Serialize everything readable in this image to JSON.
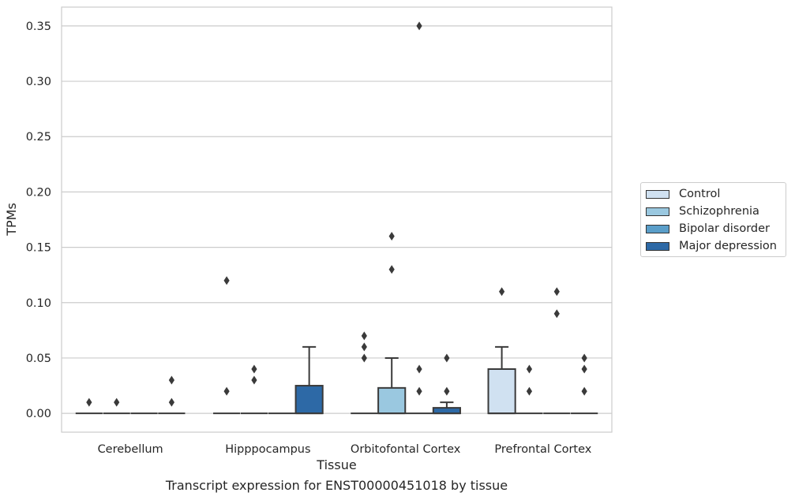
{
  "chart_data": {
    "type": "box",
    "xlabel": "Tissue",
    "ylabel": "TPMs",
    "ylim": [
      -0.017,
      0.367
    ],
    "yticks": [
      0.0,
      0.05,
      0.1,
      0.15,
      0.2,
      0.25,
      0.3,
      0.35
    ],
    "ytick_labels": [
      "0.00",
      "0.05",
      "0.10",
      "0.15",
      "0.20",
      "0.25",
      "0.30",
      "0.35"
    ],
    "grid": "horizontal",
    "legend_position": "outside-right",
    "categories": [
      "Cerebellum",
      "Hipppocampus",
      "Orbitofontal Cortex",
      "Prefrontal Cortex"
    ],
    "series": [
      {
        "name": "Control",
        "color": "#d0e1f1",
        "boxes": [
          {
            "q1": 0,
            "median": 0,
            "q3": 0,
            "whislo": 0,
            "whishi": 0,
            "fliers": [
              0.01
            ]
          },
          {
            "q1": 0,
            "median": 0,
            "q3": 0,
            "whislo": 0,
            "whishi": 0,
            "fliers": [
              0.02,
              0.12
            ]
          },
          {
            "q1": 0,
            "median": 0,
            "q3": 0,
            "whislo": 0,
            "whishi": 0,
            "fliers": [
              0.05,
              0.06,
              0.07
            ]
          },
          {
            "q1": 0,
            "median": 0,
            "q3": 0.04,
            "whislo": 0,
            "whishi": 0.06,
            "fliers": [
              0.11
            ]
          }
        ]
      },
      {
        "name": "Schizophrenia",
        "color": "#9ac8e0",
        "boxes": [
          {
            "q1": 0,
            "median": 0,
            "q3": 0,
            "whislo": 0,
            "whishi": 0,
            "fliers": [
              0.01
            ]
          },
          {
            "q1": 0,
            "median": 0,
            "q3": 0,
            "whislo": 0,
            "whishi": 0,
            "fliers": [
              0.03,
              0.04
            ]
          },
          {
            "q1": 0,
            "median": 0,
            "q3": 0.023,
            "whislo": 0,
            "whishi": 0.05,
            "fliers": [
              0.13,
              0.16
            ]
          },
          {
            "q1": 0,
            "median": 0,
            "q3": 0,
            "whislo": 0,
            "whishi": 0,
            "fliers": [
              0.02,
              0.04
            ]
          }
        ]
      },
      {
        "name": "Bipolar disorder",
        "color": "#5a9ec9",
        "boxes": [
          {
            "q1": 0,
            "median": 0,
            "q3": 0,
            "whislo": 0,
            "whishi": 0,
            "fliers": []
          },
          {
            "q1": 0,
            "median": 0,
            "q3": 0,
            "whislo": 0,
            "whishi": 0,
            "fliers": []
          },
          {
            "q1": 0,
            "median": 0,
            "q3": 0,
            "whislo": 0,
            "whishi": 0,
            "fliers": [
              0.02,
              0.04,
              0.35
            ]
          },
          {
            "q1": 0,
            "median": 0,
            "q3": 0,
            "whislo": 0,
            "whishi": 0,
            "fliers": [
              0.09,
              0.11
            ]
          }
        ]
      },
      {
        "name": "Major depression",
        "color": "#2d69a6",
        "boxes": [
          {
            "q1": 0,
            "median": 0,
            "q3": 0,
            "whislo": 0,
            "whishi": 0,
            "fliers": [
              0.01,
              0.03
            ]
          },
          {
            "q1": 0,
            "median": 0,
            "q3": 0.025,
            "whislo": 0,
            "whishi": 0.06,
            "fliers": []
          },
          {
            "q1": 0,
            "median": 0,
            "q3": 0.005,
            "whislo": 0,
            "whishi": 0.01,
            "fliers": [
              0.02,
              0.05
            ]
          },
          {
            "q1": 0,
            "median": 0,
            "q3": 0,
            "whislo": 0,
            "whishi": 0,
            "fliers": [
              0.02,
              0.04,
              0.05
            ]
          }
        ]
      }
    ]
  },
  "caption": "Transcript expression for ENST00000451018 by tissue"
}
